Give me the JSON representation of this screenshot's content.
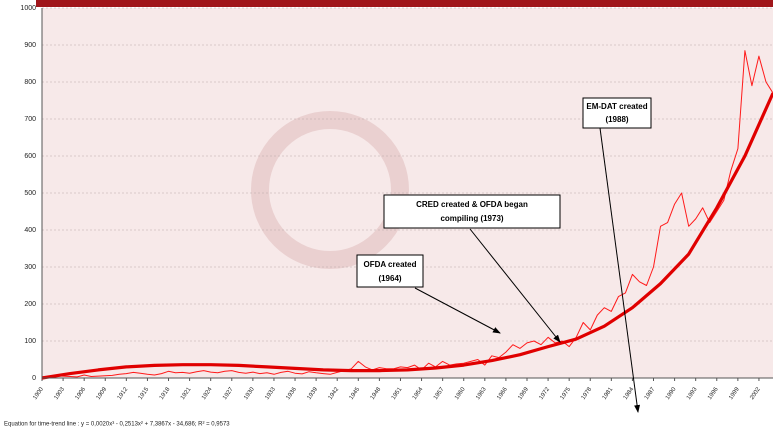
{
  "chart_data": {
    "type": "line",
    "x": [
      1900,
      1901,
      1902,
      1903,
      1904,
      1905,
      1906,
      1907,
      1908,
      1909,
      1910,
      1911,
      1912,
      1913,
      1914,
      1915,
      1916,
      1917,
      1918,
      1919,
      1920,
      1921,
      1922,
      1923,
      1924,
      1925,
      1926,
      1927,
      1928,
      1929,
      1930,
      1931,
      1932,
      1933,
      1934,
      1935,
      1936,
      1937,
      1938,
      1939,
      1940,
      1941,
      1942,
      1943,
      1944,
      1945,
      1946,
      1947,
      1948,
      1949,
      1950,
      1951,
      1952,
      1953,
      1954,
      1955,
      1956,
      1957,
      1958,
      1959,
      1960,
      1961,
      1962,
      1963,
      1964,
      1965,
      1966,
      1967,
      1968,
      1969,
      1970,
      1971,
      1972,
      1973,
      1974,
      1975,
      1976,
      1977,
      1978,
      1979,
      1980,
      1981,
      1982,
      1983,
      1984,
      1985,
      1986,
      1987,
      1988,
      1989,
      1990,
      1991,
      1992,
      1993,
      1994,
      1995,
      1996,
      1997,
      1998,
      1999,
      2000,
      2001,
      2002,
      2003,
      2004
    ],
    "series": [
      {
        "color": "#ff1a1a",
        "values": [
          3,
          4,
          6,
          5,
          4,
          3,
          8,
          4,
          5,
          6,
          7,
          10,
          12,
          15,
          13,
          10,
          8,
          12,
          18,
          14,
          15,
          13,
          17,
          20,
          16,
          14,
          18,
          20,
          15,
          13,
          16,
          12,
          14,
          10,
          15,
          18,
          13,
          11,
          17,
          14,
          12,
          10,
          15,
          20,
          25,
          45,
          30,
          22,
          28,
          25,
          25,
          30,
          28,
          35,
          22,
          40,
          30,
          45,
          35,
          38,
          40,
          45,
          50,
          35,
          60,
          55,
          70,
          90,
          80,
          95,
          100,
          90,
          110,
          95,
          100,
          85,
          110,
          150,
          130,
          170,
          190,
          180,
          220,
          230,
          280,
          260,
          250,
          300,
          410,
          420,
          470,
          500,
          410,
          430,
          460,
          420,
          450,
          480,
          560,
          620,
          885,
          790,
          870,
          800,
          770
        ]
      },
      {
        "color": "#e00000",
        "x": [
          1900,
          1904,
          1908,
          1912,
          1916,
          1920,
          1924,
          1928,
          1932,
          1936,
          1940,
          1944,
          1948,
          1952,
          1956,
          1960,
          1964,
          1968,
          1972,
          1976,
          1980,
          1984,
          1988,
          1992,
          1996,
          2000,
          2004
        ],
        "values": [
          0,
          12,
          22,
          30,
          34,
          36,
          36,
          34,
          30,
          26,
          22,
          20,
          20,
          22,
          27,
          35,
          47,
          63,
          85,
          105,
          140,
          190,
          255,
          335,
          460,
          600,
          770
        ]
      }
    ],
    "xlim": [
      1900,
      2004
    ],
    "xticks": [
      1900,
      1903,
      1906,
      1909,
      1912,
      1915,
      1918,
      1921,
      1924,
      1927,
      1930,
      1933,
      1936,
      1939,
      1942,
      1945,
      1948,
      1951,
      1954,
      1957,
      1960,
      1963,
      1966,
      1969,
      1972,
      1975,
      1978,
      1981,
      1984,
      1987,
      1990,
      1993,
      1996,
      1999,
      2002
    ],
    "ylim": [
      0,
      1000
    ],
    "yticks": [
      0,
      100,
      200,
      300,
      400,
      500,
      600,
      700,
      800,
      900,
      1000
    ],
    "grid": true,
    "annotations": [
      {
        "lines": [
          "EM-DAT created",
          "(1988)"
        ]
      },
      {
        "lines": [
          "CRED created & OFDA began",
          "compiling (1973)"
        ]
      },
      {
        "lines": [
          "OFDA created",
          "(1964)"
        ]
      }
    ],
    "footnote": "Equation for time-trend line : y = 0,0020x³ - 0,2513x² + 7,3867x - 34,686;   R² = 0,9573"
  }
}
